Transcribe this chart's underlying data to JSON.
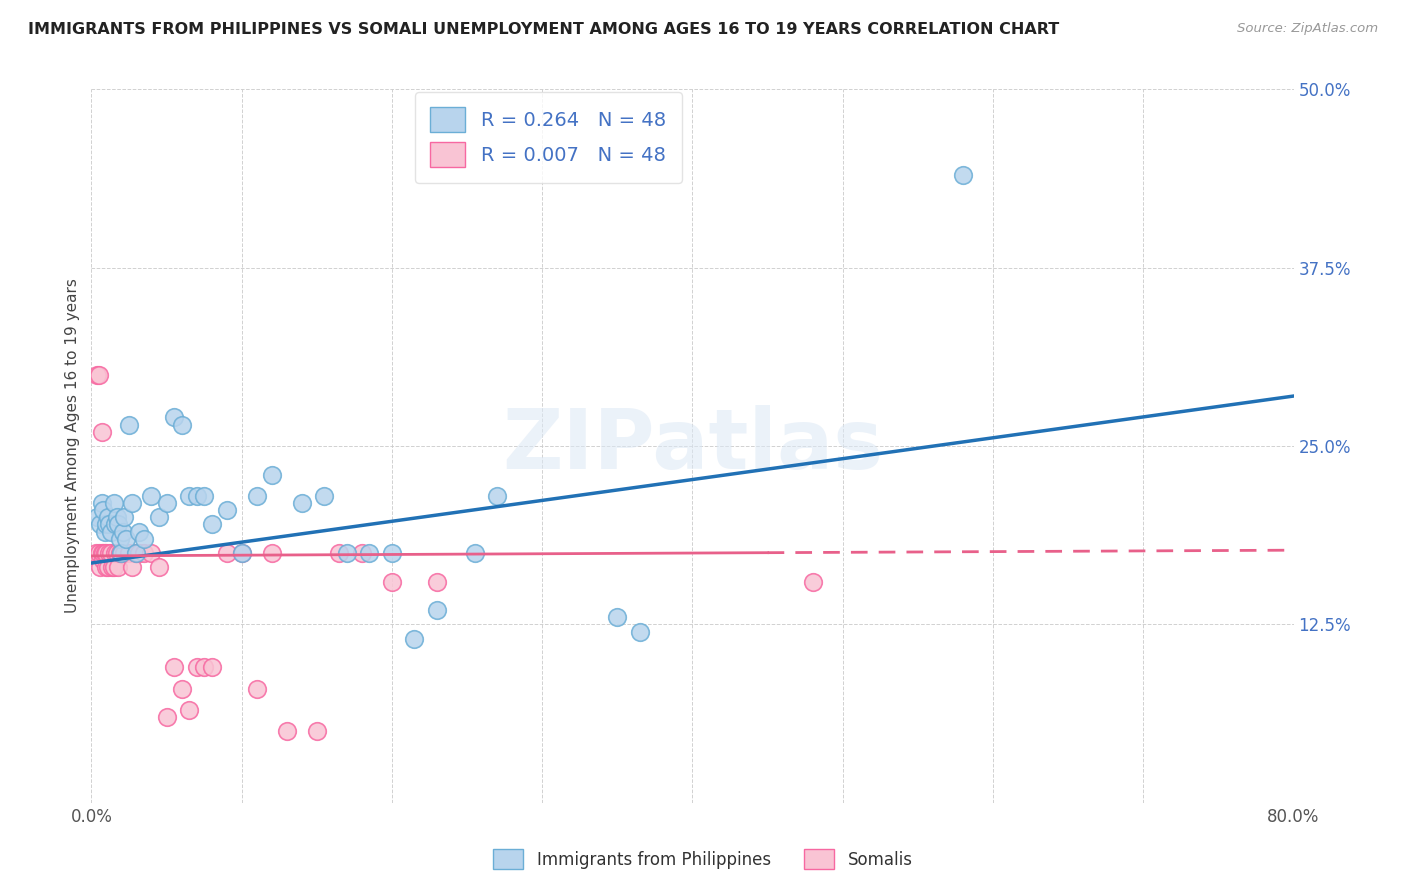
{
  "title": "IMMIGRANTS FROM PHILIPPINES VS SOMALI UNEMPLOYMENT AMONG AGES 16 TO 19 YEARS CORRELATION CHART",
  "source": "Source: ZipAtlas.com",
  "ylabel": "Unemployment Among Ages 16 to 19 years",
  "xlim": [
    0.0,
    0.8
  ],
  "ylim": [
    0.0,
    0.5
  ],
  "xticks": [
    0.0,
    0.1,
    0.2,
    0.3,
    0.4,
    0.5,
    0.6,
    0.7,
    0.8
  ],
  "yticks": [
    0.0,
    0.125,
    0.25,
    0.375,
    0.5
  ],
  "blue_R": 0.264,
  "pink_R": 0.007,
  "N": 48,
  "blue_dot_color": "#b8d4ed",
  "blue_edge_color": "#6baed6",
  "pink_dot_color": "#f9c4d4",
  "pink_edge_color": "#f768a1",
  "blue_line_color": "#2171b5",
  "pink_line_color": "#e8608a",
  "watermark": "ZIPatlas",
  "legend_label_blue": "Immigrants from Philippines",
  "legend_label_pink": "Somalis",
  "blue_x": [
    0.004,
    0.006,
    0.007,
    0.008,
    0.009,
    0.01,
    0.011,
    0.012,
    0.013,
    0.015,
    0.016,
    0.017,
    0.018,
    0.019,
    0.02,
    0.021,
    0.022,
    0.023,
    0.025,
    0.027,
    0.03,
    0.032,
    0.035,
    0.04,
    0.045,
    0.05,
    0.055,
    0.06,
    0.065,
    0.07,
    0.075,
    0.08,
    0.09,
    0.1,
    0.11,
    0.12,
    0.14,
    0.155,
    0.17,
    0.185,
    0.2,
    0.215,
    0.23,
    0.255,
    0.27,
    0.35,
    0.365,
    0.58
  ],
  "blue_y": [
    0.2,
    0.195,
    0.21,
    0.205,
    0.19,
    0.195,
    0.2,
    0.195,
    0.19,
    0.21,
    0.195,
    0.2,
    0.195,
    0.185,
    0.175,
    0.19,
    0.2,
    0.185,
    0.265,
    0.21,
    0.175,
    0.19,
    0.185,
    0.215,
    0.2,
    0.21,
    0.27,
    0.265,
    0.215,
    0.215,
    0.215,
    0.195,
    0.205,
    0.175,
    0.215,
    0.23,
    0.21,
    0.215,
    0.175,
    0.175,
    0.175,
    0.115,
    0.135,
    0.175,
    0.215,
    0.13,
    0.12,
    0.44
  ],
  "pink_x": [
    0.003,
    0.004,
    0.005,
    0.005,
    0.006,
    0.007,
    0.007,
    0.008,
    0.008,
    0.009,
    0.01,
    0.01,
    0.011,
    0.012,
    0.013,
    0.014,
    0.015,
    0.016,
    0.017,
    0.018,
    0.019,
    0.02,
    0.022,
    0.025,
    0.027,
    0.03,
    0.032,
    0.035,
    0.04,
    0.045,
    0.05,
    0.055,
    0.06,
    0.065,
    0.07,
    0.075,
    0.08,
    0.09,
    0.1,
    0.11,
    0.12,
    0.13,
    0.15,
    0.165,
    0.18,
    0.2,
    0.23,
    0.48
  ],
  "pink_y": [
    0.175,
    0.3,
    0.175,
    0.3,
    0.165,
    0.26,
    0.175,
    0.17,
    0.175,
    0.175,
    0.175,
    0.165,
    0.165,
    0.175,
    0.175,
    0.165,
    0.165,
    0.175,
    0.175,
    0.165,
    0.175,
    0.175,
    0.175,
    0.175,
    0.165,
    0.175,
    0.175,
    0.175,
    0.175,
    0.165,
    0.06,
    0.095,
    0.08,
    0.065,
    0.095,
    0.095,
    0.095,
    0.175,
    0.175,
    0.08,
    0.175,
    0.05,
    0.05,
    0.175,
    0.175,
    0.155,
    0.155,
    0.155
  ],
  "blue_trend_x": [
    0.0,
    0.8
  ],
  "blue_trend_y": [
    0.168,
    0.285
  ],
  "pink_trend_x": [
    0.0,
    0.8
  ],
  "pink_trend_y": [
    0.173,
    0.177
  ]
}
